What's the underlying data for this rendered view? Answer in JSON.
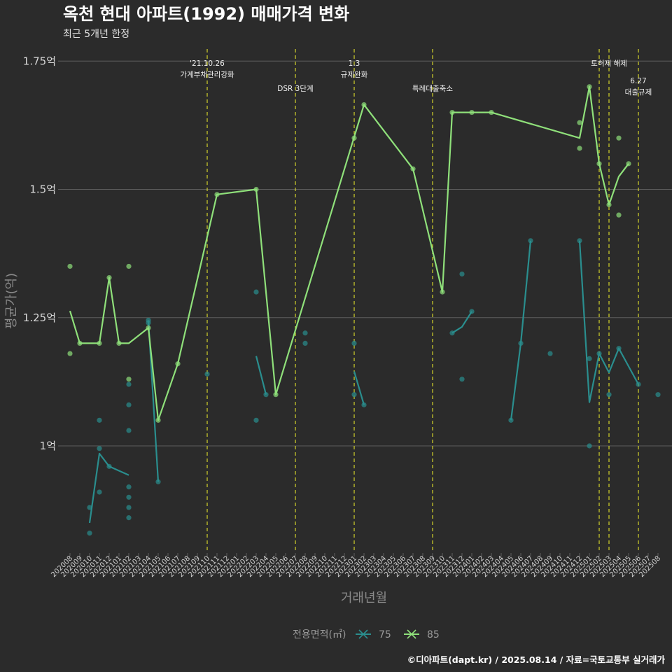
{
  "title": "옥천 현대 아파트(1992) 매매가격 변화",
  "subtitle": "최근 5개년 한정",
  "caption": "©디아파트(dapt.kr) / 2025.08.14 / 자료=국토교통부 실거래가",
  "colors": {
    "background": "#2b2b2b",
    "grid": "#5e5e5e",
    "s75": "#2a8e8e",
    "s85": "#8fe07a",
    "vline": "#d4d42a"
  },
  "chart_data": {
    "type": "line",
    "xlabel": "거래년월",
    "ylabel": "평균가(억)",
    "ylim": [
      0.8,
      1.75
    ],
    "yticks": [
      {
        "value": 1.0,
        "label": "1억"
      },
      {
        "value": 1.25,
        "label": "1.25억"
      },
      {
        "value": 1.5,
        "label": "1.5억"
      },
      {
        "value": 1.75,
        "label": "1.75억"
      }
    ],
    "x": [
      "202008",
      "202009",
      "202010",
      "202011",
      "202012",
      "202101",
      "202102",
      "202103",
      "202104",
      "202105",
      "202106",
      "202107",
      "202108",
      "202109",
      "202110",
      "202111",
      "202112",
      "202201",
      "202202",
      "202203",
      "202204",
      "202205",
      "202206",
      "202207",
      "202208",
      "202209",
      "202210",
      "202211",
      "202212",
      "202301",
      "202302",
      "202303",
      "202304",
      "202305",
      "202306",
      "202307",
      "202308",
      "202309",
      "202310",
      "202311",
      "202312",
      "202401",
      "202402",
      "202403",
      "202404",
      "202405",
      "202406",
      "202407",
      "202408",
      "202409",
      "202410",
      "202411",
      "202412",
      "202501",
      "202502",
      "202503",
      "202504",
      "202505",
      "202506",
      "202507",
      "202508"
    ],
    "legend_title": "전용면적(㎡)",
    "series": [
      {
        "name": "75",
        "line": [
          [
            "202010",
            0.85
          ],
          [
            "202011",
            0.985
          ],
          [
            "202012",
            0.96
          ],
          [
            "202102",
            0.943
          ],
          null,
          [
            "202104",
            1.245
          ],
          [
            "202105",
            0.93
          ],
          null,
          [
            "202203",
            1.175
          ],
          [
            "202204",
            1.1
          ],
          null,
          [
            "202301",
            1.145
          ],
          [
            "202302",
            1.08
          ],
          null,
          [
            "202311",
            1.22
          ],
          [
            "202312",
            1.232
          ],
          [
            "202401",
            1.262
          ],
          null,
          [
            "202405",
            1.05
          ],
          [
            "202406",
            1.2
          ],
          [
            "202407",
            1.4
          ],
          null,
          [
            "202412",
            1.4
          ],
          [
            "202501",
            1.085
          ],
          [
            "202502",
            1.18
          ],
          [
            "202503",
            1.143
          ],
          [
            "202504",
            1.19
          ],
          [
            "202506",
            1.12
          ]
        ],
        "points": [
          [
            "202010",
            0.88
          ],
          [
            "202010",
            0.83
          ],
          [
            "202011",
            1.05
          ],
          [
            "202011",
            0.995
          ],
          [
            "202011",
            0.91
          ],
          [
            "202012",
            0.96
          ],
          [
            "202102",
            0.92
          ],
          [
            "202102",
            0.9
          ],
          [
            "202102",
            0.88
          ],
          [
            "202102",
            0.86
          ],
          [
            "202102",
            1.03
          ],
          [
            "202102",
            1.08
          ],
          [
            "202102",
            1.12
          ],
          [
            "202104",
            1.245
          ],
          [
            "202104",
            1.24
          ],
          [
            "202105",
            0.93
          ],
          [
            "202110",
            1.14
          ],
          [
            "202203",
            1.3
          ],
          [
            "202203",
            1.05
          ],
          [
            "202204",
            1.1
          ],
          [
            "202208",
            1.2
          ],
          [
            "202208",
            1.22
          ],
          [
            "202301",
            1.2
          ],
          [
            "202301",
            1.1
          ],
          [
            "202302",
            1.08
          ],
          [
            "202311",
            1.22
          ],
          [
            "202312",
            1.335
          ],
          [
            "202312",
            1.13
          ],
          [
            "202401",
            1.262
          ],
          [
            "202405",
            1.05
          ],
          [
            "202406",
            1.2
          ],
          [
            "202407",
            1.4
          ],
          [
            "202409",
            1.18
          ],
          [
            "202412",
            1.4
          ],
          [
            "202501",
            1.17
          ],
          [
            "202501",
            1.0
          ],
          [
            "202502",
            1.18
          ],
          [
            "202503",
            1.1
          ],
          [
            "202504",
            1.19
          ],
          [
            "202506",
            1.12
          ],
          [
            "202508",
            1.1
          ]
        ]
      },
      {
        "name": "85",
        "line": [
          [
            "202008",
            1.263
          ],
          [
            "202009",
            1.2
          ],
          [
            "202011",
            1.2
          ],
          [
            "202012",
            1.328
          ],
          [
            "202101",
            1.2
          ],
          [
            "202102",
            1.2
          ],
          [
            "202104",
            1.23
          ],
          [
            "202105",
            1.05
          ],
          [
            "202107",
            1.16
          ],
          [
            "202111",
            1.49
          ],
          [
            "202203",
            1.5
          ],
          [
            "202205",
            1.1
          ],
          [
            "202302",
            1.665
          ],
          [
            "202307",
            1.54
          ],
          [
            "202310",
            1.3
          ],
          [
            "202311",
            1.65
          ],
          [
            "202401",
            1.65
          ],
          [
            "202403",
            1.65
          ],
          [
            "202412",
            1.6
          ],
          [
            "202501",
            1.7
          ],
          [
            "202502",
            1.55
          ],
          [
            "202503",
            1.47
          ],
          [
            "202504",
            1.525
          ],
          [
            "202505",
            1.55
          ]
        ],
        "points": [
          [
            "202008",
            1.35
          ],
          [
            "202008",
            1.18
          ],
          [
            "202009",
            1.2
          ],
          [
            "202011",
            1.2
          ],
          [
            "202012",
            1.328
          ],
          [
            "202101",
            1.2
          ],
          [
            "202102",
            1.35
          ],
          [
            "202102",
            1.13
          ],
          [
            "202104",
            1.23
          ],
          [
            "202105",
            1.05
          ],
          [
            "202107",
            1.16
          ],
          [
            "202111",
            1.49
          ],
          [
            "202203",
            1.5
          ],
          [
            "202205",
            1.1
          ],
          [
            "202301",
            1.6
          ],
          [
            "202302",
            1.665
          ],
          [
            "202307",
            1.54
          ],
          [
            "202310",
            1.3
          ],
          [
            "202311",
            1.65
          ],
          [
            "202401",
            1.65
          ],
          [
            "202403",
            1.65
          ],
          [
            "202412",
            1.63
          ],
          [
            "202412",
            1.58
          ],
          [
            "202501",
            1.7
          ],
          [
            "202502",
            1.55
          ],
          [
            "202503",
            1.47
          ],
          [
            "202504",
            1.6
          ],
          [
            "202504",
            1.45
          ],
          [
            "202505",
            1.55
          ]
        ]
      }
    ],
    "annotations": [
      {
        "x": "202110",
        "lines": [
          "'21.10.26",
          "가계부채관리강화"
        ],
        "row": 1
      },
      {
        "x": "202207",
        "lines": [
          "DSR 3단계"
        ],
        "row": 2
      },
      {
        "x": "202301",
        "lines": [
          "1.3",
          "규제완화"
        ],
        "row": 1
      },
      {
        "x": "202309",
        "lines": [
          "특례대출축소"
        ],
        "row": 2
      },
      {
        "x": "202502",
        "lines": [],
        "row": 1
      },
      {
        "x": "202503",
        "lines": [
          "토허제 해제"
        ],
        "row": 1
      },
      {
        "x": "202506",
        "lines": [
          "6.27",
          "대출규제"
        ],
        "row": 3
      }
    ]
  }
}
